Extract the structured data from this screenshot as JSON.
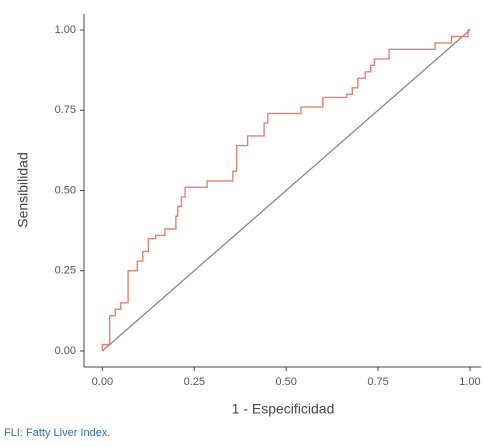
{
  "chart_data": {
    "type": "step",
    "x_label": "1 - Especificidad",
    "y_label": "Sensibilidad",
    "caption": "FLI: Fatty Liver Index.",
    "series": [
      {
        "color": "#e8806f",
        "x": [
          0,
          0,
          0.02,
          0.02,
          0.035,
          0.035,
          0.05,
          0.05,
          0.07,
          0.07,
          0.095,
          0.095,
          0.11,
          0.11,
          0.125,
          0.125,
          0.145,
          0.145,
          0.17,
          0.17,
          0.2,
          0.2,
          0.205,
          0.205,
          0.215,
          0.215,
          0.225,
          0.225,
          0.285,
          0.285,
          0.355,
          0.355,
          0.365,
          0.365,
          0.395,
          0.395,
          0.44,
          0.44,
          0.45,
          0.45,
          0.54,
          0.54,
          0.6,
          0.6,
          0.665,
          0.665,
          0.68,
          0.68,
          0.695,
          0.695,
          0.715,
          0.715,
          0.73,
          0.73,
          0.74,
          0.74,
          0.78,
          0.78,
          0.905,
          0.905,
          0.95,
          0.95,
          0.995,
          0.995,
          1
        ],
        "values": [
          0,
          0.02,
          0.02,
          0.11,
          0.11,
          0.13,
          0.13,
          0.15,
          0.15,
          0.25,
          0.25,
          0.28,
          0.28,
          0.31,
          0.31,
          0.35,
          0.35,
          0.36,
          0.36,
          0.38,
          0.38,
          0.42,
          0.42,
          0.45,
          0.45,
          0.48,
          0.48,
          0.51,
          0.51,
          0.53,
          0.53,
          0.56,
          0.56,
          0.64,
          0.64,
          0.67,
          0.67,
          0.71,
          0.71,
          0.74,
          0.74,
          0.76,
          0.76,
          0.79,
          0.79,
          0.8,
          0.8,
          0.82,
          0.82,
          0.85,
          0.85,
          0.87,
          0.87,
          0.89,
          0.89,
          0.91,
          0.91,
          0.94,
          0.94,
          0.96,
          0.96,
          0.98,
          0.98,
          1,
          1
        ]
      }
    ],
    "reference_line": {
      "x": [
        0,
        1
      ],
      "y": [
        0,
        1
      ],
      "color": "#808080"
    },
    "xlim": [
      -0.05,
      1.03
    ],
    "ylim": [
      -0.05,
      1.05
    ],
    "xticks": [
      {
        "value": 0,
        "label": "0.00"
      },
      {
        "value": 0.25,
        "label": "0.25"
      },
      {
        "value": 0.5,
        "label": "0.50"
      },
      {
        "value": 0.75,
        "label": "0.75"
      },
      {
        "value": 1,
        "label": "1.00"
      }
    ],
    "yticks": [
      {
        "value": 0,
        "label": "0.00"
      },
      {
        "value": 0.25,
        "label": "0.25"
      },
      {
        "value": 0.5,
        "label": "0.50"
      },
      {
        "value": 0.75,
        "label": "0.75"
      },
      {
        "value": 1,
        "label": "1.00"
      }
    ],
    "grid": false
  }
}
